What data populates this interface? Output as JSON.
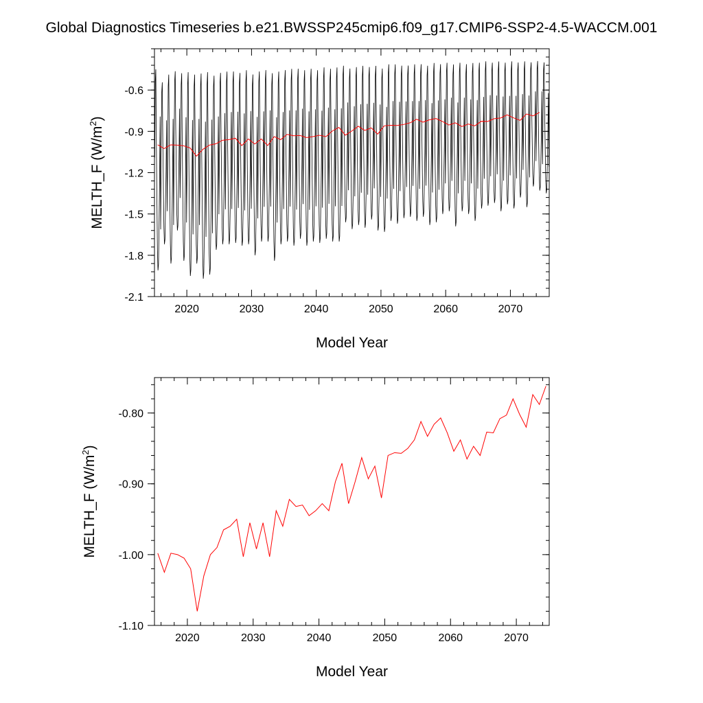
{
  "title": "Global Diagnostics Timeseries b.e21.BWSSP245cmip6.f09_g17.CMIP6-SSP2-4.5-WACCM.001",
  "chart_data": [
    {
      "type": "line",
      "xlabel": "Model Year",
      "ylabel": "MELTH_F (W/m2)",
      "ylabel_parts": {
        "main": "MELTH_F (W/m",
        "sup": "2",
        "close": ")"
      },
      "xlim": [
        2015,
        2076
      ],
      "ylim": [
        -2.1,
        -0.3
      ],
      "xticks": [
        2020,
        2030,
        2040,
        2050,
        2060,
        2070
      ],
      "yticks": [
        -2.1,
        -1.8,
        -1.5,
        -1.2,
        -0.9,
        -0.6
      ],
      "ytick_labels": [
        "-2.1",
        "-1.8",
        "-1.5",
        "-1.2",
        "-0.9",
        "-0.6"
      ],
      "grid": false,
      "series": [
        {
          "kind": "monthly",
          "color": "#000000",
          "start_year": 2015,
          "annual_min": [
            -1.91,
            -1.72,
            -1.86,
            -1.62,
            -1.84,
            -1.95,
            -1.86,
            -1.97,
            -1.94,
            -1.76,
            -1.72,
            -1.72,
            -1.71,
            -1.73,
            -1.72,
            -1.8,
            -1.7,
            -1.7,
            -1.84,
            -1.72,
            -1.7,
            -1.73,
            -1.68,
            -1.73,
            -1.7,
            -1.71,
            -1.68,
            -1.7,
            -1.7,
            -1.56,
            -1.61,
            -1.58,
            -1.6,
            -1.54,
            -1.62,
            -1.63,
            -1.55,
            -1.57,
            -1.53,
            -1.52,
            -1.55,
            -1.52,
            -1.58,
            -1.56,
            -1.5,
            -1.48,
            -1.59,
            -1.48,
            -1.5,
            -1.55,
            -1.46,
            -1.44,
            -1.42,
            -1.48,
            -1.43,
            -1.46,
            -1.38,
            -1.45,
            -1.3,
            -1.33,
            -1.35
          ],
          "annual_max": [
            -0.42,
            -0.52,
            -0.46,
            -0.44,
            -0.45,
            -0.44,
            -0.46,
            -0.45,
            -0.44,
            -0.47,
            -0.45,
            -0.44,
            -0.44,
            -0.45,
            -0.43,
            -0.46,
            -0.44,
            -0.43,
            -0.45,
            -0.44,
            -0.43,
            -0.42,
            -0.42,
            -0.43,
            -0.42,
            -0.43,
            -0.41,
            -0.42,
            -0.41,
            -0.4,
            -0.42,
            -0.41,
            -0.4,
            -0.41,
            -0.4,
            -0.42,
            -0.39,
            -0.39,
            -0.4,
            -0.4,
            -0.39,
            -0.39,
            -0.4,
            -0.38,
            -0.39,
            -0.38,
            -0.39,
            -0.38,
            -0.39,
            -0.38,
            -0.38,
            -0.37,
            -0.38,
            -0.37,
            -0.38,
            -0.37,
            -0.38,
            -0.37,
            -0.38,
            -0.37,
            -0.38
          ]
        },
        {
          "kind": "annual",
          "color": "#ff0000",
          "x": [
            2015.5,
            2016.5,
            2017.5,
            2018.5,
            2019.5,
            2020.5,
            2021.5,
            2022.5,
            2023.5,
            2024.5,
            2025.5,
            2026.5,
            2027.5,
            2028.5,
            2029.5,
            2030.5,
            2031.5,
            2032.5,
            2033.5,
            2034.5,
            2035.5,
            2036.5,
            2037.5,
            2038.5,
            2039.5,
            2040.5,
            2041.5,
            2042.5,
            2043.5,
            2044.5,
            2045.5,
            2046.5,
            2047.5,
            2048.5,
            2049.5,
            2050.5,
            2051.5,
            2052.5,
            2053.5,
            2054.5,
            2055.5,
            2056.5,
            2057.5,
            2058.5,
            2059.5,
            2060.5,
            2061.5,
            2062.5,
            2063.5,
            2064.5,
            2065.5,
            2066.5,
            2067.5,
            2068.5,
            2069.5,
            2070.5,
            2071.5,
            2072.5,
            2073.5,
            2074.5
          ],
          "y": [
            -0.998,
            -1.025,
            -0.998,
            -1.0,
            -1.005,
            -1.02,
            -1.08,
            -1.03,
            -1.0,
            -0.99,
            -0.965,
            -0.96,
            -0.95,
            -1.003,
            -0.955,
            -0.992,
            -0.955,
            -1.003,
            -0.938,
            -0.96,
            -0.922,
            -0.932,
            -0.93,
            -0.945,
            -0.938,
            -0.928,
            -0.938,
            -0.897,
            -0.871,
            -0.928,
            -0.897,
            -0.863,
            -0.893,
            -0.875,
            -0.92,
            -0.86,
            -0.856,
            -0.857,
            -0.85,
            -0.838,
            -0.812,
            -0.833,
            -0.816,
            -0.807,
            -0.828,
            -0.854,
            -0.838,
            -0.865,
            -0.847,
            -0.86,
            -0.827,
            -0.828,
            -0.808,
            -0.803,
            -0.78,
            -0.802,
            -0.82,
            -0.774,
            -0.788,
            -0.762
          ]
        }
      ]
    },
    {
      "type": "line",
      "xlabel": "Model Year",
      "ylabel": "MELTH_F (W/m2)",
      "ylabel_parts": {
        "main": "MELTH_F (W/m",
        "sup": "2",
        "close": ")"
      },
      "xlim": [
        2015,
        2075
      ],
      "ylim": [
        -1.1,
        -0.75
      ],
      "xticks": [
        2020,
        2030,
        2040,
        2050,
        2060,
        2070
      ],
      "yticks": [
        -1.1,
        -1.0,
        -0.9,
        -0.8
      ],
      "ytick_labels": [
        "-1.10",
        "-1.00",
        "-0.90",
        "-0.80"
      ],
      "grid": false,
      "series": [
        {
          "kind": "annual",
          "color": "#ff0000",
          "x": [
            2015.5,
            2016.5,
            2017.5,
            2018.5,
            2019.5,
            2020.5,
            2021.5,
            2022.5,
            2023.5,
            2024.5,
            2025.5,
            2026.5,
            2027.5,
            2028.5,
            2029.5,
            2030.5,
            2031.5,
            2032.5,
            2033.5,
            2034.5,
            2035.5,
            2036.5,
            2037.5,
            2038.5,
            2039.5,
            2040.5,
            2041.5,
            2042.5,
            2043.5,
            2044.5,
            2045.5,
            2046.5,
            2047.5,
            2048.5,
            2049.5,
            2050.5,
            2051.5,
            2052.5,
            2053.5,
            2054.5,
            2055.5,
            2056.5,
            2057.5,
            2058.5,
            2059.5,
            2060.5,
            2061.5,
            2062.5,
            2063.5,
            2064.5,
            2065.5,
            2066.5,
            2067.5,
            2068.5,
            2069.5,
            2070.5,
            2071.5,
            2072.5,
            2073.5,
            2074.5
          ],
          "y": [
            -0.998,
            -1.025,
            -0.998,
            -1.0,
            -1.005,
            -1.02,
            -1.08,
            -1.03,
            -1.0,
            -0.99,
            -0.965,
            -0.96,
            -0.95,
            -1.003,
            -0.955,
            -0.992,
            -0.955,
            -1.003,
            -0.938,
            -0.96,
            -0.922,
            -0.932,
            -0.93,
            -0.945,
            -0.938,
            -0.928,
            -0.938,
            -0.897,
            -0.871,
            -0.928,
            -0.897,
            -0.863,
            -0.893,
            -0.875,
            -0.92,
            -0.86,
            -0.856,
            -0.857,
            -0.85,
            -0.838,
            -0.812,
            -0.833,
            -0.816,
            -0.807,
            -0.828,
            -0.854,
            -0.838,
            -0.865,
            -0.847,
            -0.86,
            -0.827,
            -0.828,
            -0.808,
            -0.803,
            -0.78,
            -0.802,
            -0.82,
            -0.774,
            -0.788,
            -0.762
          ]
        }
      ]
    }
  ]
}
